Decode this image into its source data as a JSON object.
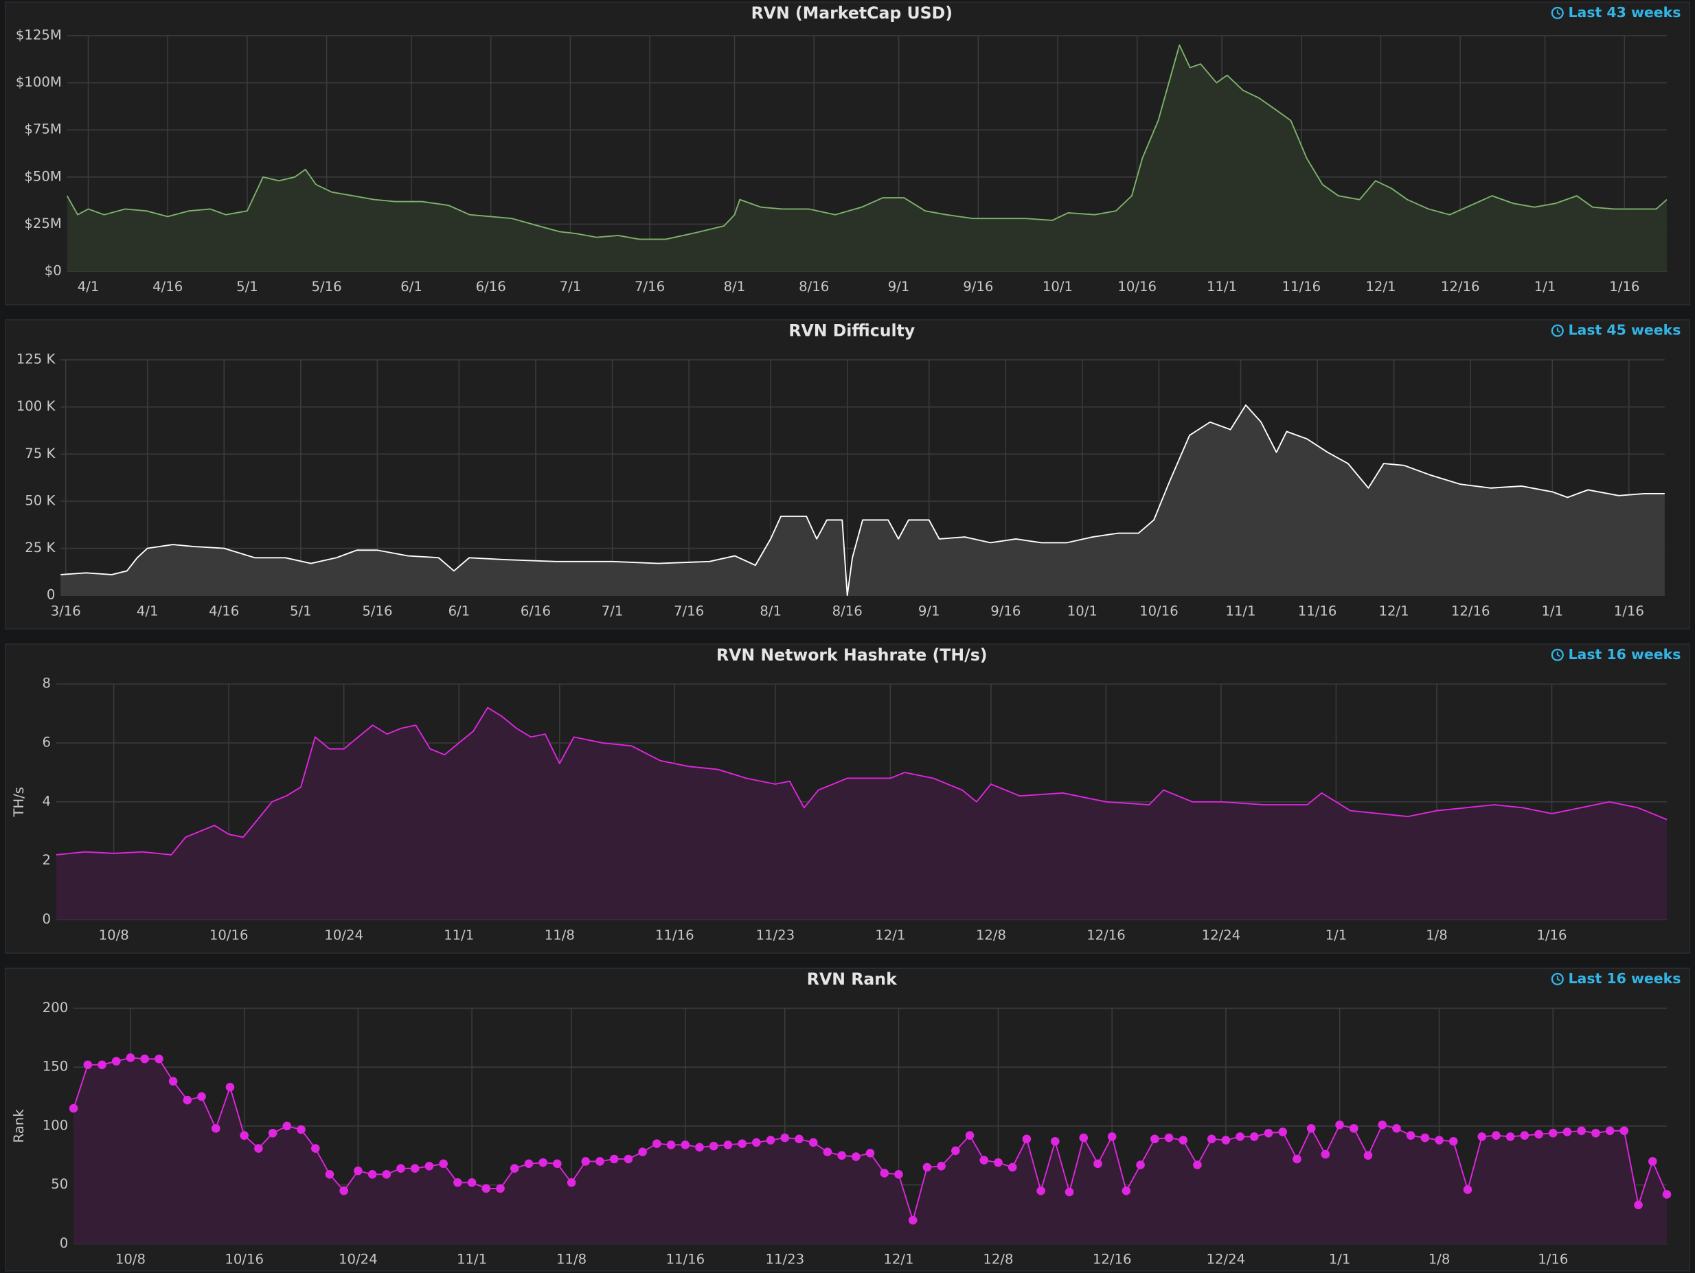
{
  "chart_data": [
    {
      "type": "area",
      "title": "RVN (MarketCap USD)",
      "time_range": "Last 43 weeks",
      "color": "#7eb26d",
      "fill_color": "#2a3126",
      "x": [
        "3/28",
        "3/30",
        "4/1",
        "4/4",
        "4/8",
        "4/12",
        "4/16",
        "4/20",
        "4/24",
        "4/27",
        "5/1",
        "5/4",
        "5/7",
        "5/10",
        "5/12",
        "5/14",
        "5/17",
        "5/21",
        "5/25",
        "5/29",
        "6/3",
        "6/8",
        "6/12",
        "6/16",
        "6/20",
        "6/25",
        "6/29",
        "7/2",
        "7/6",
        "7/10",
        "7/14",
        "7/19",
        "7/24",
        "7/30",
        "8/1",
        "8/2",
        "8/6",
        "8/10",
        "8/15",
        "8/20",
        "8/25",
        "8/29",
        "9/2",
        "9/6",
        "9/10",
        "9/15",
        "9/20",
        "9/25",
        "9/30",
        "10/3",
        "10/8",
        "10/12",
        "10/15",
        "10/17",
        "10/20",
        "10/22",
        "10/24",
        "10/26",
        "10/28",
        "10/31",
        "11/2",
        "11/5",
        "11/8",
        "11/11",
        "11/14",
        "11/17",
        "11/20",
        "11/23",
        "11/27",
        "11/30",
        "12/3",
        "12/6",
        "12/10",
        "12/14",
        "12/18",
        "12/22",
        "12/26",
        "12/30",
        "1/3",
        "1/7",
        "1/10",
        "1/14",
        "1/18",
        "1/22",
        "1/24"
      ],
      "values": [
        40000000,
        30000000,
        33000000,
        30000000,
        33000000,
        32000000,
        29000000,
        32000000,
        33000000,
        30000000,
        32000000,
        50000000,
        48000000,
        50000000,
        54000000,
        46000000,
        42000000,
        40000000,
        38000000,
        37000000,
        37000000,
        35000000,
        30000000,
        29000000,
        28000000,
        24000000,
        21000000,
        20000000,
        18000000,
        19000000,
        17000000,
        17000000,
        20000000,
        24000000,
        30000000,
        38000000,
        34000000,
        33000000,
        33000000,
        30000000,
        34000000,
        39000000,
        39000000,
        32000000,
        30000000,
        28000000,
        28000000,
        28000000,
        27000000,
        31000000,
        30000000,
        32000000,
        40000000,
        60000000,
        80000000,
        100000000,
        120000000,
        108000000,
        110000000,
        100000000,
        104000000,
        96000000,
        92000000,
        86000000,
        80000000,
        60000000,
        46000000,
        40000000,
        38000000,
        48000000,
        44000000,
        38000000,
        33000000,
        30000000,
        35000000,
        40000000,
        36000000,
        34000000,
        36000000,
        40000000,
        34000000,
        33000000,
        33000000,
        33000000,
        38000000
      ],
      "xlim": [
        "3/28",
        "1/24"
      ],
      "xticks": [
        "4/1",
        "4/16",
        "5/1",
        "5/16",
        "6/1",
        "6/16",
        "7/1",
        "7/16",
        "8/1",
        "8/16",
        "9/1",
        "9/16",
        "10/1",
        "10/16",
        "11/1",
        "11/16",
        "12/1",
        "12/16",
        "1/1",
        "1/16"
      ],
      "ylim": [
        0,
        125000000
      ],
      "yticks": [
        {
          "value": 0,
          "label": "$0"
        },
        {
          "value": 25000000,
          "label": "$25M"
        },
        {
          "value": 50000000,
          "label": "$50M"
        },
        {
          "value": 75000000,
          "label": "$75M"
        },
        {
          "value": 100000000,
          "label": "$100M"
        },
        {
          "value": 125000000,
          "label": "$125M"
        }
      ],
      "grid": true
    },
    {
      "type": "area",
      "title": "RVN Difficulty",
      "time_range": "Last 45 weeks",
      "color": "#ffffff",
      "fill_color": "#3a3a3b",
      "x": [
        "3/15",
        "3/20",
        "3/25",
        "3/28",
        "3/30",
        "4/1",
        "4/6",
        "4/10",
        "4/16",
        "4/22",
        "4/28",
        "5/3",
        "5/8",
        "5/12",
        "5/16",
        "5/22",
        "5/28",
        "5/31",
        "6/3",
        "6/10",
        "6/20",
        "7/1",
        "7/10",
        "7/20",
        "7/25",
        "7/29",
        "8/1",
        "8/3",
        "8/8",
        "8/10",
        "8/12",
        "8/15",
        "8/16",
        "8/17",
        "8/19",
        "8/24",
        "8/26",
        "8/28",
        "9/1",
        "9/3",
        "9/8",
        "9/13",
        "9/18",
        "9/23",
        "9/28",
        "10/3",
        "10/8",
        "10/12",
        "10/15",
        "10/18",
        "10/22",
        "10/26",
        "10/30",
        "11/2",
        "11/5",
        "11/8",
        "11/10",
        "11/14",
        "11/18",
        "11/22",
        "11/26",
        "11/29",
        "12/3",
        "12/8",
        "12/14",
        "12/20",
        "12/26",
        "1/1",
        "1/4",
        "1/8",
        "1/14",
        "1/19",
        "1/23"
      ],
      "values": [
        11000,
        12000,
        11000,
        13000,
        20000,
        25000,
        27000,
        26000,
        25000,
        20000,
        20000,
        17000,
        20000,
        24000,
        24000,
        21000,
        20000,
        13000,
        20000,
        19000,
        18000,
        18000,
        17000,
        18000,
        21000,
        16000,
        30000,
        42000,
        42000,
        30000,
        40000,
        40000,
        0,
        20000,
        40000,
        40000,
        30000,
        40000,
        40000,
        30000,
        31000,
        28000,
        30000,
        28000,
        28000,
        31000,
        33000,
        33000,
        40000,
        60000,
        85000,
        92000,
        88000,
        101000,
        92000,
        76000,
        87000,
        83000,
        76000,
        70000,
        57000,
        70000,
        69000,
        64000,
        59000,
        57000,
        58000,
        55000,
        52000,
        56000,
        53000,
        54000,
        54000
      ],
      "xlim": [
        "3/15",
        "1/23"
      ],
      "xticks": [
        "3/16",
        "4/1",
        "4/16",
        "5/1",
        "5/16",
        "6/1",
        "6/16",
        "7/1",
        "7/16",
        "8/1",
        "8/16",
        "9/1",
        "9/16",
        "10/1",
        "10/16",
        "11/1",
        "11/16",
        "12/1",
        "12/16",
        "1/1",
        "1/16"
      ],
      "ylim": [
        0,
        125000
      ],
      "yticks": [
        0,
        {
          "value": 25000,
          "label": "25 K"
        },
        {
          "value": 50000,
          "label": "50 K"
        },
        {
          "value": 75000,
          "label": "75 K"
        },
        {
          "value": 100000,
          "label": "100 K"
        },
        {
          "value": 125000,
          "label": "125 K"
        }
      ],
      "grid": true
    },
    {
      "type": "area",
      "title": "RVN Network Hashrate (TH/s)",
      "time_range": "Last 16 weeks",
      "ylabel": "TH/s",
      "color": "#e026e0",
      "fill_color": "#351d35",
      "x": [
        "10/4",
        "10/6",
        "10/8",
        "10/10",
        "10/12",
        "10/13",
        "10/14",
        "10/15",
        "10/16",
        "10/17",
        "10/18",
        "10/19",
        "10/20",
        "10/21",
        "10/22",
        "10/23",
        "10/24",
        "10/25",
        "10/26",
        "10/27",
        "10/28",
        "10/29",
        "10/30",
        "10/31",
        "11/1",
        "11/2",
        "11/3",
        "11/4",
        "11/5",
        "11/6",
        "11/7",
        "11/8",
        "11/9",
        "11/11",
        "11/13",
        "11/15",
        "11/17",
        "11/19",
        "11/21",
        "11/23",
        "11/24",
        "11/25",
        "11/26",
        "11/28",
        "12/1",
        "12/2",
        "12/4",
        "12/6",
        "12/7",
        "12/8",
        "12/10",
        "12/13",
        "12/16",
        "12/19",
        "12/20",
        "12/22",
        "12/24",
        "12/27",
        "12/30",
        "12/31",
        "1/2",
        "1/4",
        "1/6",
        "1/8",
        "1/10",
        "1/12",
        "1/14",
        "1/16",
        "1/18",
        "1/20",
        "1/22",
        "1/24"
      ],
      "values": [
        2.2,
        2.3,
        2.25,
        2.3,
        2.2,
        2.8,
        3.0,
        3.2,
        2.9,
        2.8,
        3.4,
        4.0,
        4.2,
        4.5,
        6.2,
        5.8,
        5.8,
        6.2,
        6.6,
        6.3,
        6.5,
        6.6,
        5.8,
        5.6,
        6.0,
        6.4,
        7.2,
        6.9,
        6.5,
        6.2,
        6.3,
        5.3,
        6.2,
        6.0,
        5.9,
        5.4,
        5.2,
        5.1,
        4.8,
        4.6,
        4.7,
        3.8,
        4.4,
        4.8,
        4.8,
        5.0,
        4.8,
        4.4,
        4.0,
        4.6,
        4.2,
        4.3,
        4.0,
        3.9,
        4.4,
        4.0,
        4.0,
        3.9,
        3.9,
        4.3,
        3.7,
        3.6,
        3.5,
        3.7,
        3.8,
        3.9,
        3.8,
        3.6,
        3.8,
        4.0,
        3.8,
        3.4
      ],
      "xlim": [
        "10/4",
        "1/24"
      ],
      "xticks": [
        "10/8",
        "10/16",
        "10/24",
        "11/1",
        "11/8",
        "11/16",
        "11/23",
        "12/1",
        "12/8",
        "12/16",
        "12/24",
        "1/1",
        "1/8",
        "1/16"
      ],
      "ylim": [
        0,
        8
      ],
      "yticks": [
        0,
        2,
        4,
        6,
        8
      ],
      "grid": true
    },
    {
      "type": "area",
      "title": "RVN Rank",
      "time_range": "Last 16 weeks",
      "ylabel": "Rank",
      "color": "#e026e0",
      "fill_color": "#351d35",
      "markers": true,
      "x": [
        "10/4",
        "10/5",
        "10/6",
        "10/7",
        "10/8",
        "10/9",
        "10/10",
        "10/11",
        "10/12",
        "10/13",
        "10/14",
        "10/15",
        "10/16",
        "10/17",
        "10/18",
        "10/19",
        "10/20",
        "10/21",
        "10/22",
        "10/23",
        "10/24",
        "10/25",
        "10/26",
        "10/27",
        "10/28",
        "10/29",
        "10/30",
        "10/31",
        "11/1",
        "11/2",
        "11/3",
        "11/4",
        "11/5",
        "11/6",
        "11/7",
        "11/8",
        "11/9",
        "11/10",
        "11/11",
        "11/12",
        "11/13",
        "11/14",
        "11/15",
        "11/16",
        "11/17",
        "11/18",
        "11/19",
        "11/20",
        "11/21",
        "11/22",
        "11/23",
        "11/24",
        "11/25",
        "11/26",
        "11/27",
        "11/28",
        "11/29",
        "11/30",
        "12/1",
        "12/2",
        "12/3",
        "12/4",
        "12/5",
        "12/6",
        "12/7",
        "12/8",
        "12/9",
        "12/10",
        "12/11",
        "12/12",
        "12/13",
        "12/14",
        "12/15",
        "12/16",
        "12/17",
        "12/18",
        "12/19",
        "12/20",
        "12/21",
        "12/22",
        "12/23",
        "12/24",
        "12/25",
        "12/26",
        "12/27",
        "12/28",
        "12/29",
        "12/30",
        "12/31",
        "1/1",
        "1/2",
        "1/3",
        "1/4",
        "1/5",
        "1/6",
        "1/7",
        "1/8",
        "1/9",
        "1/10",
        "1/11",
        "1/12",
        "1/13",
        "1/14",
        "1/15",
        "1/16",
        "1/17",
        "1/18",
        "1/19",
        "1/20",
        "1/21",
        "1/22",
        "1/23",
        "1/24"
      ],
      "values": [
        115,
        152,
        152,
        155,
        158,
        157,
        157,
        138,
        122,
        125,
        98,
        133,
        92,
        81,
        94,
        100,
        97,
        81,
        59,
        45,
        62,
        59,
        59,
        64,
        64,
        66,
        68,
        52,
        52,
        47,
        47,
        64,
        68,
        69,
        68,
        52,
        70,
        70,
        72,
        72,
        78,
        85,
        84,
        84,
        82,
        83,
        84,
        85,
        86,
        88,
        90,
        89,
        86,
        78,
        75,
        74,
        77,
        60,
        59,
        20,
        65,
        66,
        79,
        92,
        71,
        69,
        65,
        89,
        45,
        87,
        44,
        90,
        68,
        91,
        45,
        67,
        89,
        90,
        88,
        67,
        89,
        88,
        91,
        91,
        94,
        95,
        72,
        98,
        76,
        101,
        98,
        75,
        101,
        98,
        92,
        90,
        88,
        87,
        46,
        91,
        92,
        91,
        92,
        93,
        94,
        95,
        96,
        94,
        96,
        96,
        33,
        70,
        42
      ],
      "xlim": [
        "10/4",
        "1/24"
      ],
      "xticks": [
        "10/8",
        "10/16",
        "10/24",
        "11/1",
        "11/8",
        "11/16",
        "11/23",
        "12/1",
        "12/8",
        "12/16",
        "12/24",
        "1/1",
        "1/8",
        "1/16"
      ],
      "ylim": [
        0,
        200
      ],
      "yticks": [
        0,
        50,
        100,
        150,
        200
      ],
      "grid": true
    }
  ]
}
